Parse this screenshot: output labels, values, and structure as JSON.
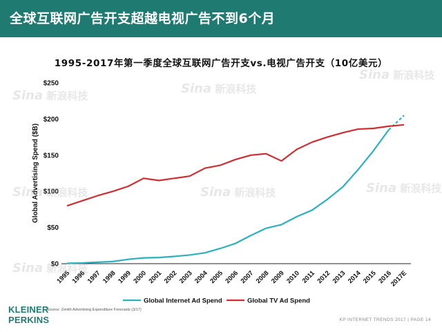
{
  "banner": {
    "title": "全球互联网广告开支超越电视广告不到6个月"
  },
  "chart_data": {
    "type": "line",
    "title": "1995-2017年第一季度全球互联网广告开支vs.电视广告开支（10亿美元）",
    "ylabel": "Global Advertising Spend ($B)",
    "xlabel": "",
    "ylim": [
      0,
      250
    ],
    "yticks": [
      "$0",
      "$50",
      "$100",
      "$150",
      "$200",
      "$250"
    ],
    "ytick_values": [
      0,
      50,
      100,
      150,
      200,
      250
    ],
    "categories": [
      "1995",
      "1996",
      "1997",
      "1998",
      "1999",
      "2000",
      "2001",
      "2002",
      "2003",
      "2004",
      "2005",
      "2006",
      "2007",
      "2008",
      "2009",
      "2010",
      "2011",
      "2012",
      "2013",
      "2014",
      "2015",
      "2016",
      "2017E"
    ],
    "series": [
      {
        "name": "Global Internet Ad Spend",
        "color": "#2ab0bf",
        "values": [
          0.5,
          1,
          2,
          3,
          6,
          8,
          8.5,
          10,
          12,
          15,
          21,
          28,
          39,
          49,
          54,
          65,
          74,
          89,
          106,
          130,
          156,
          185,
          205
        ],
        "projected_from_index": 21
      },
      {
        "name": "Global TV Ad Spend",
        "color": "#d12c30",
        "values": [
          80,
          87,
          94,
          100,
          107,
          118,
          115,
          118,
          121,
          132,
          136,
          144,
          150,
          152,
          142,
          158,
          168,
          175,
          181,
          186,
          187,
          190,
          192
        ]
      }
    ],
    "legend_position": "bottom",
    "grid": false
  },
  "source": "Source: Zenith Advertising Expenditure Forecasts (3/17)",
  "logo": {
    "line1": "KLEINER",
    "line2": "PERKINS"
  },
  "footer": "KP INTERNET TRENDS 2017  |  PAGE 14",
  "watermark": {
    "s": "Sina",
    "text": "新浪科技"
  }
}
